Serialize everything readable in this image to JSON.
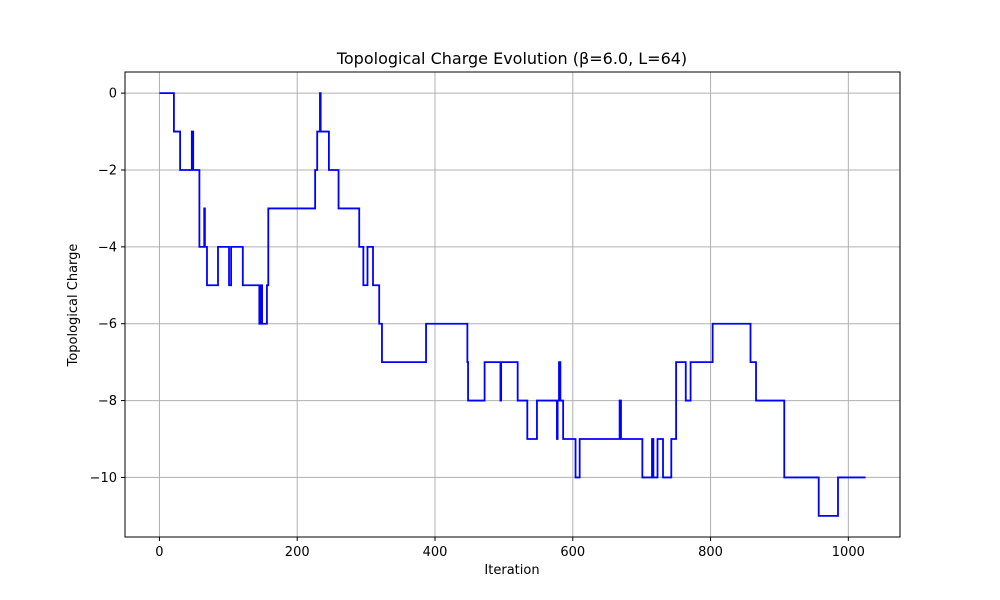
{
  "chart_data": {
    "type": "line",
    "title": "Topological Charge Evolution (β=6.0, L=64)",
    "xlabel": "Iteration",
    "ylabel": "Topological Charge",
    "xlim": [
      -50,
      1075
    ],
    "ylim": [
      -11.55,
      0.55
    ],
    "xticks": [
      0,
      200,
      400,
      600,
      800,
      1000
    ],
    "yticks": [
      0,
      -2,
      -4,
      -6,
      -8,
      -10
    ],
    "xtick_labels": [
      "0",
      "200",
      "400",
      "600",
      "800",
      "1000"
    ],
    "ytick_labels": [
      "0",
      "−2",
      "−4",
      "−6",
      "−8",
      "−10"
    ],
    "grid": true,
    "line_color": "#0000ff",
    "series": [
      {
        "step_points": [
          [
            0,
            0
          ],
          [
            21,
            -1
          ],
          [
            30,
            -2
          ],
          [
            47,
            -1
          ],
          [
            49,
            -2
          ],
          [
            58,
            -4
          ],
          [
            65,
            -3
          ],
          [
            66,
            -4
          ],
          [
            69,
            -5
          ],
          [
            85,
            -4
          ],
          [
            101,
            -5
          ],
          [
            104,
            -4
          ],
          [
            121,
            -5
          ],
          [
            145,
            -6
          ],
          [
            147,
            -5
          ],
          [
            149,
            -6
          ],
          [
            156,
            -5
          ],
          [
            158,
            -3
          ],
          [
            226,
            -2
          ],
          [
            229,
            -1
          ],
          [
            233,
            0
          ],
          [
            234,
            -1
          ],
          [
            246,
            -2
          ],
          [
            260,
            -3
          ],
          [
            290,
            -4
          ],
          [
            296,
            -5
          ],
          [
            302,
            -4
          ],
          [
            310,
            -5
          ],
          [
            319,
            -6
          ],
          [
            323,
            -7
          ],
          [
            387,
            -6
          ],
          [
            447,
            -7
          ],
          [
            448,
            -8
          ],
          [
            472,
            -7
          ],
          [
            495,
            -8
          ],
          [
            496,
            -7
          ],
          [
            520,
            -8
          ],
          [
            534,
            -9
          ],
          [
            548,
            -8
          ],
          [
            577,
            -9
          ],
          [
            578,
            -8
          ],
          [
            580,
            -7
          ],
          [
            582,
            -8
          ],
          [
            586,
            -9
          ],
          [
            604,
            -10
          ],
          [
            610,
            -9
          ],
          [
            668,
            -8
          ],
          [
            670,
            -9
          ],
          [
            701,
            -10
          ],
          [
            715,
            -9
          ],
          [
            717,
            -10
          ],
          [
            723,
            -9
          ],
          [
            731,
            -10
          ],
          [
            743,
            -9
          ],
          [
            750,
            -7
          ],
          [
            764,
            -8
          ],
          [
            771,
            -7
          ],
          [
            803,
            -6
          ],
          [
            858,
            -7
          ],
          [
            866,
            -8
          ],
          [
            907,
            -10
          ],
          [
            957,
            -11
          ],
          [
            985,
            -10
          ],
          [
            1025,
            -10
          ]
        ]
      }
    ]
  }
}
